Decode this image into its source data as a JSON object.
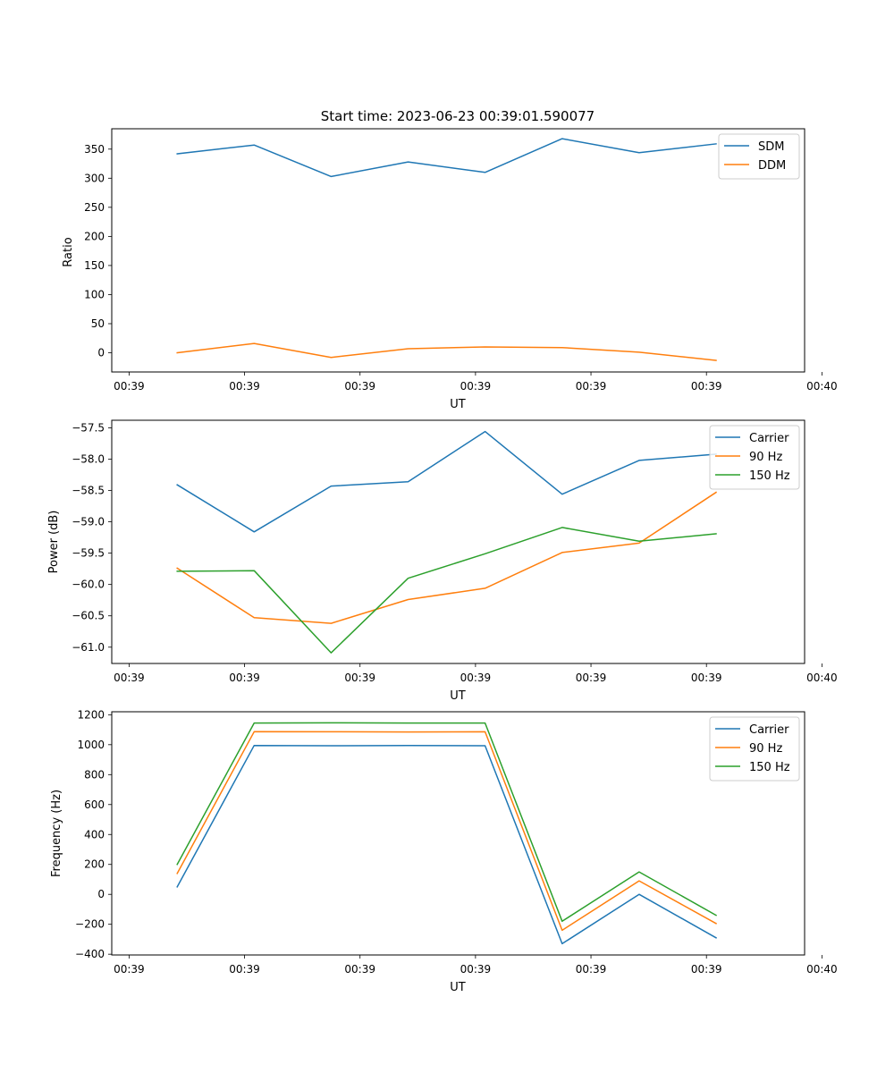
{
  "chart_data": [
    {
      "type": "line",
      "title": "Start time: 2023-06-23 00:39:01.590077",
      "xlabel": "UT",
      "ylabel": "Ratio",
      "x": [
        1,
        2,
        3,
        4,
        5,
        6,
        7,
        8
      ],
      "xlim": [
        0.15,
        9.15
      ],
      "xticks": [
        0.375,
        1.875,
        3.375,
        4.875,
        6.375,
        7.875,
        9.375
      ],
      "xtick_labels": [
        "00:39",
        "00:39",
        "00:39",
        "00:39",
        "00:39",
        "00:39",
        "00:40"
      ],
      "ylim": [
        -33,
        385
      ],
      "yticks": [
        0,
        50,
        100,
        150,
        200,
        250,
        300,
        350
      ],
      "ytick_labels": [
        "0",
        "50",
        "100",
        "150",
        "200",
        "250",
        "300",
        "350"
      ],
      "legend": "top-right",
      "grid": false,
      "series": [
        {
          "name": "SDM",
          "color": "#1f77b4",
          "values": [
            342,
            357,
            303,
            328,
            310,
            368,
            344,
            359
          ]
        },
        {
          "name": "DDM",
          "color": "#ff7f0e",
          "values": [
            0,
            16,
            -8,
            7,
            10,
            9,
            1,
            -13
          ]
        }
      ]
    },
    {
      "type": "line",
      "xlabel": "UT",
      "ylabel": "Power (dB)",
      "x": [
        1,
        2,
        3,
        4,
        5,
        6,
        7,
        8
      ],
      "xlim": [
        0.15,
        9.15
      ],
      "xticks": [
        0.375,
        1.875,
        3.375,
        4.875,
        6.375,
        7.875,
        9.375
      ],
      "xtick_labels": [
        "00:39",
        "00:39",
        "00:39",
        "00:39",
        "00:39",
        "00:39",
        "00:40"
      ],
      "ylim": [
        -61.26,
        -57.38
      ],
      "yticks": [
        -61.0,
        -60.5,
        -60.0,
        -59.5,
        -59.0,
        -58.5,
        -58.0,
        -57.5
      ],
      "ytick_labels": [
        "−61.0",
        "−60.5",
        "−60.0",
        "−59.5",
        "−59.0",
        "−58.5",
        "−58.0",
        "−57.5"
      ],
      "legend": "top-right",
      "grid": false,
      "series": [
        {
          "name": "Carrier",
          "color": "#1f77b4",
          "values": [
            -58.41,
            -59.16,
            -58.43,
            -58.36,
            -57.56,
            -58.56,
            -58.02,
            -57.92
          ]
        },
        {
          "name": "90 Hz",
          "color": "#ff7f0e",
          "values": [
            -59.74,
            -60.53,
            -60.62,
            -60.24,
            -60.06,
            -59.49,
            -59.34,
            -58.53
          ]
        },
        {
          "name": "150 Hz",
          "color": "#2ca02c",
          "values": [
            -59.79,
            -59.78,
            -61.09,
            -59.9,
            -59.51,
            -59.09,
            -59.31,
            -59.19
          ]
        }
      ]
    },
    {
      "type": "line",
      "xlabel": "UT",
      "ylabel": "Frequency (Hz)",
      "x": [
        1,
        2,
        3,
        4,
        5,
        6,
        7,
        8
      ],
      "xlim": [
        0.15,
        9.15
      ],
      "xticks": [
        0.375,
        1.875,
        3.375,
        4.875,
        6.375,
        7.875,
        9.375
      ],
      "xtick_labels": [
        "00:39",
        "00:39",
        "00:39",
        "00:39",
        "00:39",
        "00:39",
        "00:40"
      ],
      "ylim": [
        -405,
        1220
      ],
      "yticks": [
        -400,
        -200,
        0,
        200,
        400,
        600,
        800,
        1000,
        1200
      ],
      "ytick_labels": [
        "−400",
        "−200",
        "0",
        "200",
        "400",
        "600",
        "800",
        "1000",
        "1200"
      ],
      "legend": "top-right",
      "grid": false,
      "series": [
        {
          "name": "Carrier",
          "color": "#1f77b4",
          "values": [
            50,
            995,
            993,
            995,
            993,
            -330,
            0,
            -290
          ]
        },
        {
          "name": "90 Hz",
          "color": "#ff7f0e",
          "values": [
            140,
            1087,
            1086,
            1085,
            1086,
            -240,
            90,
            -195
          ]
        },
        {
          "name": "150 Hz",
          "color": "#2ca02c",
          "values": [
            200,
            1145,
            1146,
            1145,
            1145,
            -180,
            150,
            -140
          ]
        }
      ]
    }
  ]
}
